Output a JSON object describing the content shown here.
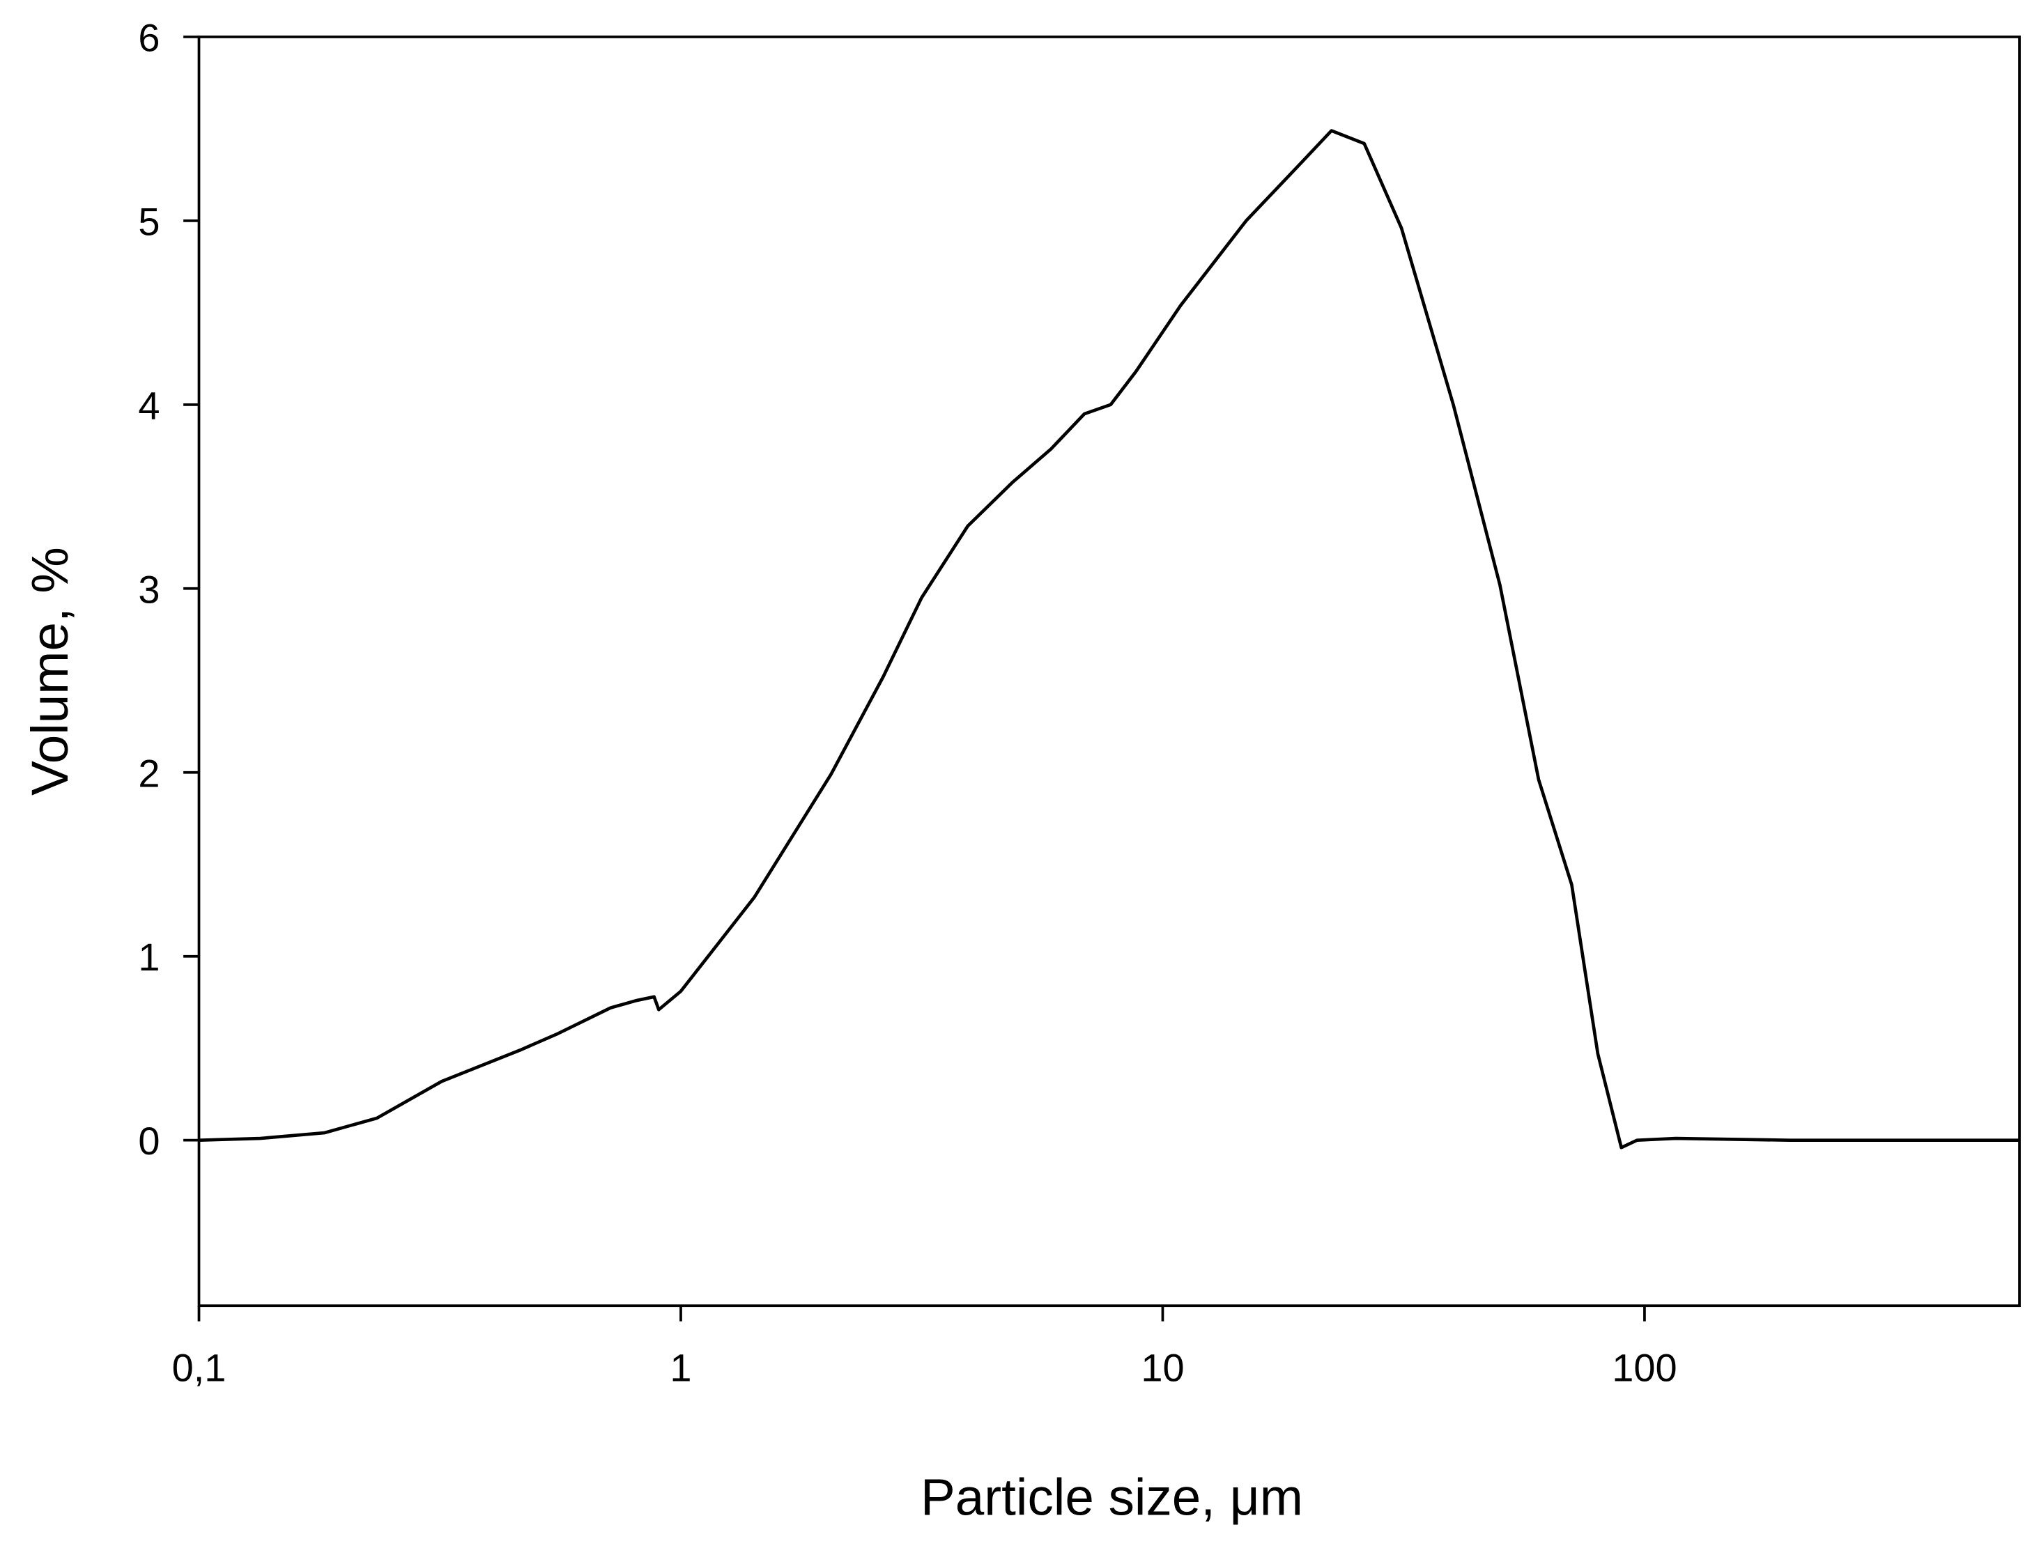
{
  "chart_data": {
    "type": "line",
    "log_x": true,
    "color": "#000000",
    "xlabel": "Particle size, μm",
    "ylabel": "Volume, %",
    "xlim": [
      0.1,
      600
    ],
    "ylim": [
      -0.9,
      6
    ],
    "xticks": [
      {
        "value": 0.1,
        "label": "0,1"
      },
      1,
      10,
      100
    ],
    "yticks": [
      0,
      1,
      2,
      3,
      4,
      5,
      6
    ],
    "x": [
      0.1,
      0.134,
      0.182,
      0.234,
      0.319,
      0.464,
      0.556,
      0.715,
      0.81,
      0.88,
      0.9,
      1.0,
      1.42,
      2.05,
      2.63,
      3.16,
      3.94,
      4.89,
      5.87,
      6.88,
      7.8,
      8.8,
      10.9,
      14.9,
      19.3,
      22.4,
      26.2,
      31.3,
      40.1,
      50.1,
      60.3,
      70.6,
      80.0,
      89.5,
      96.5,
      116,
      200,
      600
    ],
    "values": [
      0,
      0.01,
      0.04,
      0.12,
      0.32,
      0.49,
      0.58,
      0.72,
      0.76,
      0.78,
      0.71,
      0.81,
      1.32,
      1.99,
      2.52,
      2.95,
      3.34,
      3.58,
      3.76,
      3.95,
      4.0,
      4.18,
      4.54,
      5.0,
      5.31,
      5.49,
      5.42,
      4.96,
      4.0,
      3.02,
      1.96,
      1.39,
      0.47,
      -0.04,
      0.0,
      0.01,
      0,
      0
    ]
  }
}
